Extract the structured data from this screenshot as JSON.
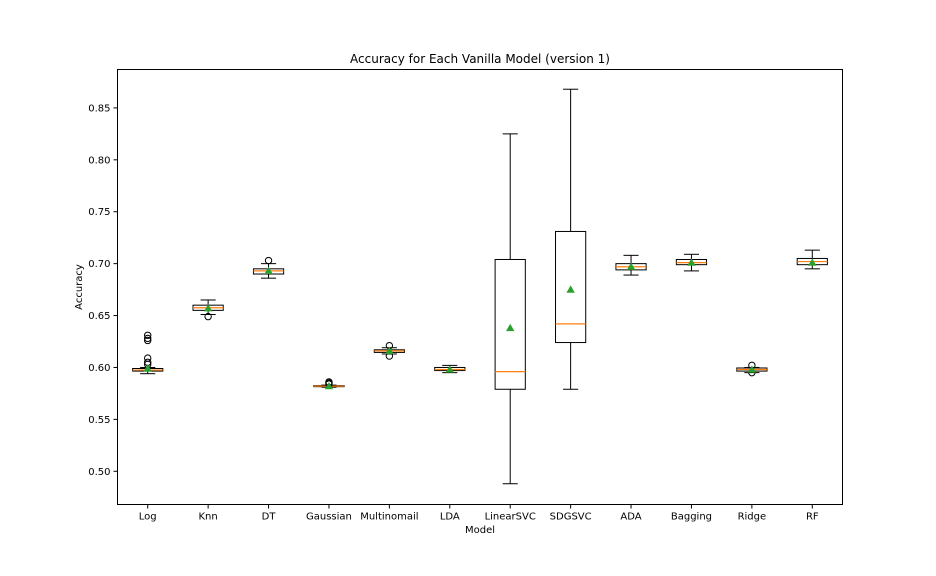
{
  "chart_data": {
    "type": "boxplot",
    "title": "Accuracy for Each Vanilla Model (version 1)",
    "xlabel": "Model",
    "ylabel": "Accuracy",
    "ylim": [
      0.468,
      0.887
    ],
    "yticks": [
      0.5,
      0.55,
      0.6,
      0.65,
      0.7,
      0.75,
      0.8,
      0.85
    ],
    "grid": false,
    "colors": {
      "box": "#000000",
      "median": "#ff7f0e",
      "mean_marker": "#2ca02c",
      "flier": "#000000"
    },
    "categories": [
      "Log",
      "Knn",
      "DT",
      "Gaussian",
      "Multinomail",
      "LDA",
      "LinearSVC",
      "SDGSVC",
      "ADA",
      "Bagging",
      "Ridge",
      "RF"
    ],
    "series": [
      {
        "category": "Log",
        "whisker_low": 0.594,
        "q1": 0.5965,
        "median": 0.5975,
        "q3": 0.599,
        "whisker_high": 0.6,
        "mean": 0.599,
        "fliers": [
          0.603,
          0.605,
          0.609,
          0.626,
          0.628,
          0.631
        ]
      },
      {
        "category": "Knn",
        "whisker_low": 0.651,
        "q1": 0.655,
        "median": 0.6575,
        "q3": 0.66,
        "whisker_high": 0.665,
        "mean": 0.657,
        "fliers": [
          0.649
        ]
      },
      {
        "category": "DT",
        "whisker_low": 0.686,
        "q1": 0.69,
        "median": 0.693,
        "q3": 0.695,
        "whisker_high": 0.7,
        "mean": 0.693,
        "fliers": [
          0.703
        ]
      },
      {
        "category": "Gaussian",
        "whisker_low": 0.581,
        "q1": 0.5815,
        "median": 0.582,
        "q3": 0.5825,
        "whisker_high": 0.583,
        "mean": 0.582,
        "fliers": [
          0.584,
          0.585,
          0.586
        ]
      },
      {
        "category": "Multinomail",
        "whisker_low": 0.613,
        "q1": 0.6145,
        "median": 0.616,
        "q3": 0.617,
        "whisker_high": 0.619,
        "mean": 0.616,
        "fliers": [
          0.611,
          0.621
        ]
      },
      {
        "category": "LDA",
        "whisker_low": 0.595,
        "q1": 0.597,
        "median": 0.598,
        "q3": 0.6,
        "whisker_high": 0.602,
        "mean": 0.598,
        "fliers": []
      },
      {
        "category": "LinearSVC",
        "whisker_low": 0.488,
        "q1": 0.579,
        "median": 0.596,
        "q3": 0.704,
        "whisker_high": 0.825,
        "mean": 0.638,
        "fliers": []
      },
      {
        "category": "SDGSVC",
        "whisker_low": 0.579,
        "q1": 0.624,
        "median": 0.642,
        "q3": 0.731,
        "whisker_high": 0.868,
        "mean": 0.675,
        "fliers": []
      },
      {
        "category": "ADA",
        "whisker_low": 0.689,
        "q1": 0.694,
        "median": 0.697,
        "q3": 0.7,
        "whisker_high": 0.708,
        "mean": 0.697,
        "fliers": []
      },
      {
        "category": "Bagging",
        "whisker_low": 0.693,
        "q1": 0.699,
        "median": 0.701,
        "q3": 0.704,
        "whisker_high": 0.709,
        "mean": 0.701,
        "fliers": []
      },
      {
        "category": "Ridge",
        "whisker_low": 0.595,
        "q1": 0.5965,
        "median": 0.598,
        "q3": 0.5995,
        "whisker_high": 0.6,
        "mean": 0.598,
        "fliers": [
          0.602,
          0.595
        ]
      },
      {
        "category": "RF",
        "whisker_low": 0.695,
        "q1": 0.699,
        "median": 0.702,
        "q3": 0.705,
        "whisker_high": 0.713,
        "mean": 0.701,
        "fliers": []
      }
    ]
  }
}
